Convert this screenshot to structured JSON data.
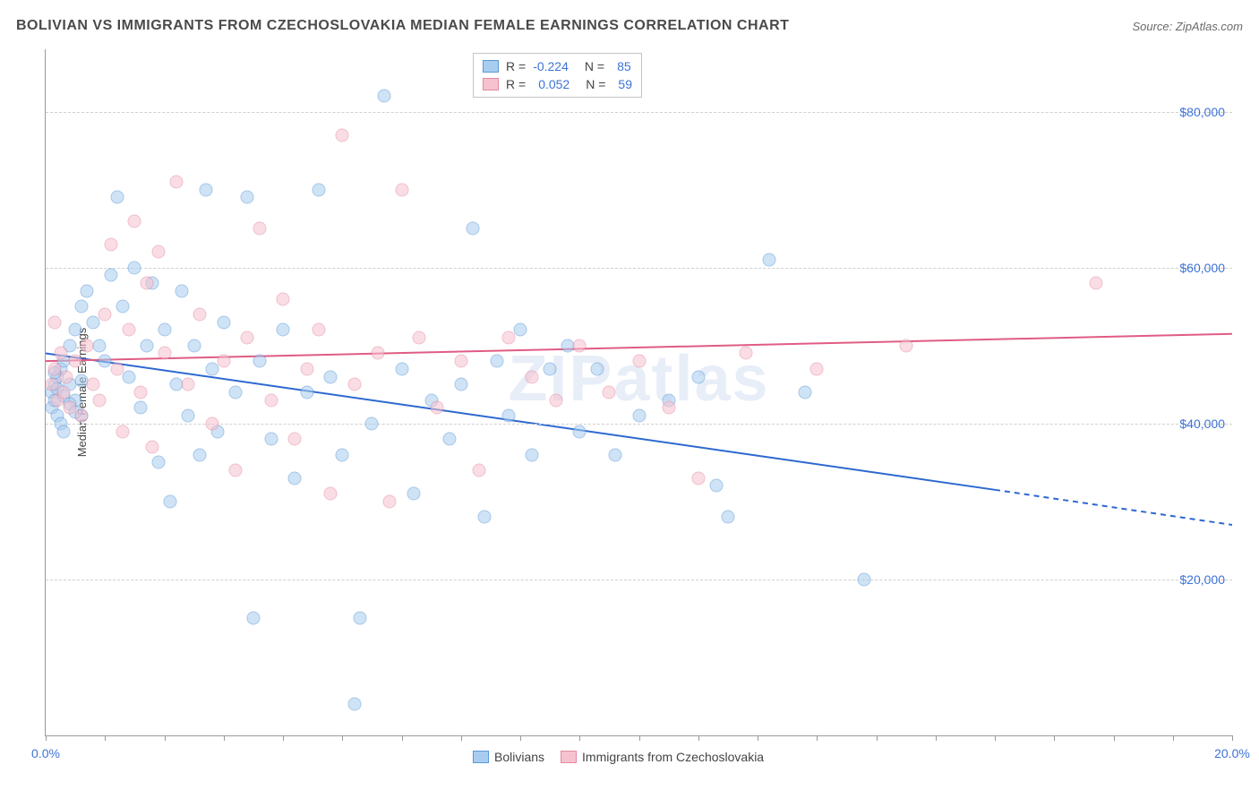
{
  "title": "BOLIVIAN VS IMMIGRANTS FROM CZECHOSLOVAKIA MEDIAN FEMALE EARNINGS CORRELATION CHART",
  "source_prefix": "Source: ",
  "source": "ZipAtlas.com",
  "watermark": "ZIPatlas",
  "chart": {
    "type": "scatter",
    "y_axis_title": "Median Female Earnings",
    "xlim": [
      0,
      20
    ],
    "ylim": [
      0,
      88000
    ],
    "x_ticks_major": [
      0,
      5,
      10,
      15,
      20
    ],
    "x_tick_labels": [
      "0.0%",
      "20.0%"
    ],
    "x_tick_label_positions": [
      0,
      20
    ],
    "x_ticks_minor": [
      0,
      1,
      2,
      3,
      4,
      5,
      6,
      7,
      8,
      9,
      10,
      11,
      12,
      13,
      14,
      15,
      16,
      17,
      18,
      19,
      20
    ],
    "y_ticks": [
      20000,
      40000,
      60000,
      80000
    ],
    "y_tick_labels": [
      "$20,000",
      "$40,000",
      "$60,000",
      "$80,000"
    ],
    "grid_color": "#d0d0d0",
    "background_color": "#ffffff",
    "axis_color": "#9a9a9a",
    "tick_label_color": "#3e72d8",
    "axis_title_color": "#444444",
    "marker_size": 15,
    "marker_opacity": 0.55,
    "series": [
      {
        "name": "Bolivians",
        "fill_color": "#a9cdf0",
        "stroke_color": "#5b98d6",
        "r_label": "R = ",
        "r_value": "-0.224",
        "n_label": "N = ",
        "n_value": "85",
        "trend": {
          "x1": 0,
          "y1": 49000,
          "x2": 16,
          "y2": 31500,
          "x2_dash": 20,
          "y2_dash": 27000,
          "color": "#2d69d0",
          "width": 2
        },
        "points": [
          [
            0.1,
            44000
          ],
          [
            0.1,
            42000
          ],
          [
            0.15,
            45000
          ],
          [
            0.15,
            43000
          ],
          [
            0.2,
            46000
          ],
          [
            0.2,
            41000
          ],
          [
            0.25,
            47000
          ],
          [
            0.25,
            40000
          ],
          [
            0.3,
            48000
          ],
          [
            0.3,
            39000
          ],
          [
            0.4,
            50000
          ],
          [
            0.4,
            45000
          ],
          [
            0.5,
            52000
          ],
          [
            0.5,
            43000
          ],
          [
            0.6,
            55000
          ],
          [
            0.6,
            41000
          ],
          [
            0.7,
            57000
          ],
          [
            0.8,
            53000
          ],
          [
            0.9,
            50000
          ],
          [
            1.0,
            48000
          ],
          [
            1.1,
            59000
          ],
          [
            1.2,
            69000
          ],
          [
            1.3,
            55000
          ],
          [
            1.4,
            46000
          ],
          [
            1.5,
            60000
          ],
          [
            1.6,
            42000
          ],
          [
            1.7,
            50000
          ],
          [
            1.8,
            58000
          ],
          [
            1.9,
            35000
          ],
          [
            2.0,
            52000
          ],
          [
            2.1,
            30000
          ],
          [
            2.2,
            45000
          ],
          [
            2.3,
            57000
          ],
          [
            2.4,
            41000
          ],
          [
            2.5,
            50000
          ],
          [
            2.6,
            36000
          ],
          [
            2.7,
            70000
          ],
          [
            2.8,
            47000
          ],
          [
            2.9,
            39000
          ],
          [
            3.0,
            53000
          ],
          [
            3.2,
            44000
          ],
          [
            3.4,
            69000
          ],
          [
            3.5,
            15000
          ],
          [
            3.6,
            48000
          ],
          [
            3.8,
            38000
          ],
          [
            4.0,
            52000
          ],
          [
            4.2,
            33000
          ],
          [
            4.4,
            44000
          ],
          [
            4.6,
            70000
          ],
          [
            4.8,
            46000
          ],
          [
            5.0,
            36000
          ],
          [
            5.2,
            4000
          ],
          [
            5.3,
            15000
          ],
          [
            5.5,
            40000
          ],
          [
            5.7,
            82000
          ],
          [
            6.0,
            47000
          ],
          [
            6.2,
            31000
          ],
          [
            6.5,
            43000
          ],
          [
            6.8,
            38000
          ],
          [
            7.0,
            45000
          ],
          [
            7.2,
            65000
          ],
          [
            7.4,
            28000
          ],
          [
            7.6,
            48000
          ],
          [
            7.8,
            41000
          ],
          [
            8.0,
            52000
          ],
          [
            8.2,
            36000
          ],
          [
            8.5,
            47000
          ],
          [
            8.8,
            50000
          ],
          [
            9.0,
            39000
          ],
          [
            9.3,
            47000
          ],
          [
            9.6,
            36000
          ],
          [
            10.0,
            41000
          ],
          [
            10.5,
            43000
          ],
          [
            11.0,
            46000
          ],
          [
            11.3,
            32000
          ],
          [
            11.5,
            28000
          ],
          [
            12.2,
            61000
          ],
          [
            12.8,
            44000
          ],
          [
            13.8,
            20000
          ],
          [
            0.2,
            44500
          ],
          [
            0.3,
            43500
          ],
          [
            0.4,
            42500
          ],
          [
            0.5,
            41500
          ],
          [
            0.6,
            45500
          ],
          [
            0.15,
            46500
          ]
        ]
      },
      {
        "name": "Immigrants from Czechoslovakia",
        "fill_color": "#f7c2cf",
        "stroke_color": "#e48aa0",
        "r_label": "R = ",
        "r_value": "0.052",
        "n_label": "N = ",
        "n_value": "59",
        "trend": {
          "x1": 0,
          "y1": 48000,
          "x2": 20,
          "y2": 51500,
          "color": "#e05c84",
          "width": 2
        },
        "points": [
          [
            0.1,
            45000
          ],
          [
            0.15,
            47000
          ],
          [
            0.2,
            43000
          ],
          [
            0.25,
            49000
          ],
          [
            0.3,
            44000
          ],
          [
            0.35,
            46000
          ],
          [
            0.4,
            42000
          ],
          [
            0.5,
            48000
          ],
          [
            0.6,
            41000
          ],
          [
            0.7,
            50000
          ],
          [
            0.8,
            45000
          ],
          [
            0.9,
            43000
          ],
          [
            1.0,
            54000
          ],
          [
            1.1,
            63000
          ],
          [
            1.2,
            47000
          ],
          [
            1.3,
            39000
          ],
          [
            1.4,
            52000
          ],
          [
            1.5,
            66000
          ],
          [
            1.6,
            44000
          ],
          [
            1.7,
            58000
          ],
          [
            1.8,
            37000
          ],
          [
            1.9,
            62000
          ],
          [
            2.0,
            49000
          ],
          [
            2.2,
            71000
          ],
          [
            2.4,
            45000
          ],
          [
            2.6,
            54000
          ],
          [
            2.8,
            40000
          ],
          [
            3.0,
            48000
          ],
          [
            3.2,
            34000
          ],
          [
            3.4,
            51000
          ],
          [
            3.6,
            65000
          ],
          [
            3.8,
            43000
          ],
          [
            4.0,
            56000
          ],
          [
            4.2,
            38000
          ],
          [
            4.4,
            47000
          ],
          [
            4.6,
            52000
          ],
          [
            4.8,
            31000
          ],
          [
            5.0,
            77000
          ],
          [
            5.2,
            45000
          ],
          [
            5.6,
            49000
          ],
          [
            5.8,
            30000
          ],
          [
            6.0,
            70000
          ],
          [
            6.3,
            51000
          ],
          [
            6.6,
            42000
          ],
          [
            7.0,
            48000
          ],
          [
            7.3,
            34000
          ],
          [
            7.8,
            51000
          ],
          [
            8.2,
            46000
          ],
          [
            8.6,
            43000
          ],
          [
            9.0,
            50000
          ],
          [
            9.5,
            44000
          ],
          [
            10.0,
            48000
          ],
          [
            10.5,
            42000
          ],
          [
            11.0,
            33000
          ],
          [
            11.8,
            49000
          ],
          [
            13.0,
            47000
          ],
          [
            14.5,
            50000
          ],
          [
            17.7,
            58000
          ],
          [
            0.15,
            53000
          ]
        ]
      }
    ],
    "legend_top_position": "36%",
    "legend_bottom_position": "36%"
  }
}
